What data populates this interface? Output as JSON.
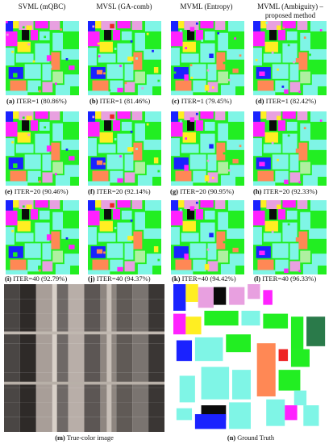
{
  "columns": [
    {
      "title": "SVML (mQBC)"
    },
    {
      "title": "MVSL (GA-comb)"
    },
    {
      "title": "MVML (Entropy)"
    },
    {
      "title": "MVML (Ambiguity) – proposed method"
    }
  ],
  "rows": [
    {
      "captions": [
        {
          "letter": "(a)",
          "text": "ITER=1 (80.86%)"
        },
        {
          "letter": "(b)",
          "text": "ITER=1 (81.46%)"
        },
        {
          "letter": "(c)",
          "text": "ITER=1 (79.45%)"
        },
        {
          "letter": "(d)",
          "text": "ITER=1 (82.42%)"
        }
      ]
    },
    {
      "captions": [
        {
          "letter": "(e)",
          "text": "ITER=20 (90.46%)"
        },
        {
          "letter": "(f)",
          "text": "ITER=20 (92.14%)"
        },
        {
          "letter": "(g)",
          "text": "ITER=20 (90.95%)"
        },
        {
          "letter": "(h)",
          "text": "ITER=20 (92.33%)"
        }
      ]
    },
    {
      "captions": [
        {
          "letter": "(i)",
          "text": "ITER=40 (92.79%)"
        },
        {
          "letter": "(j)",
          "text": "ITER=40 (94.37%)"
        },
        {
          "letter": "(k)",
          "text": "ITER=40 (94.42%)"
        },
        {
          "letter": "(l)",
          "text": "ITER=40 (96.33%)"
        }
      ]
    }
  ],
  "bottom": {
    "truecolor_caption": {
      "letter": "(m)",
      "text": "True-color image"
    },
    "groundtruth_caption": {
      "letter": "(n)",
      "text": "Ground Truth"
    }
  },
  "palette": {
    "background_map": "#0b0b0b",
    "green": "#22ee22",
    "cyan": "#7ff5e6",
    "blue": "#1a22ff",
    "magenta": "#ff22ff",
    "orange": "#ff8855",
    "yellow": "#ffee22",
    "pink": "#e8a0e0",
    "darkgreen": "#2a7a4a",
    "red": "#ee2222",
    "lightgreen": "#aef0a0"
  }
}
